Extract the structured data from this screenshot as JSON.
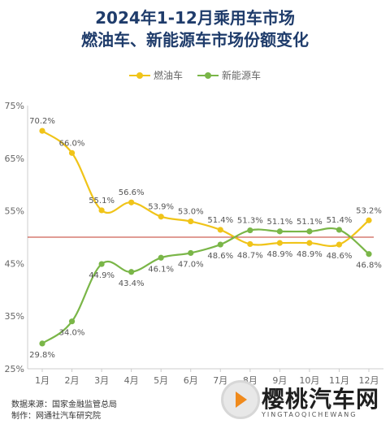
{
  "title_line1": "2024年1-12月乘用车市场",
  "title_line2": "燃油车、新能源车市场份额变化",
  "colors": {
    "fuel": "#f0c419",
    "nev": "#7ab648",
    "reference_line": "#c0392b",
    "axis_text": "#666666"
  },
  "chart_data": {
    "type": "line",
    "x": [
      "1月",
      "2月",
      "3月",
      "4月",
      "5月",
      "6月",
      "7月",
      "8月",
      "9月",
      "10月",
      "11月",
      "12月"
    ],
    "series": [
      {
        "name": "燃油车",
        "values": [
          70.2,
          66.0,
          55.1,
          56.6,
          53.9,
          53.0,
          51.4,
          48.7,
          48.9,
          48.9,
          48.6,
          53.2
        ],
        "labels": [
          "70.2%",
          "66.0%",
          "55.1%",
          "56.6%",
          "53.9%",
          "53.0%",
          "51.4%",
          "48.7%",
          "48.9%",
          "48.9%",
          "48.6%",
          "53.2%"
        ]
      },
      {
        "name": "新能源车",
        "values": [
          29.8,
          34.0,
          44.9,
          43.4,
          46.1,
          47.0,
          48.6,
          51.3,
          51.1,
          51.1,
          51.4,
          46.8
        ],
        "labels": [
          "29.8%",
          "34.0%",
          "44.9%",
          "43.4%",
          "46.1%",
          "47.0%",
          "48.6%",
          "51.3%",
          "51.1%",
          "51.1%",
          "51.4%",
          "46.8%"
        ]
      }
    ],
    "ylim": [
      25,
      75
    ],
    "yticks": [
      "25%",
      "35%",
      "45%",
      "55%",
      "65%",
      "75%"
    ],
    "reference_value": 50,
    "legend_position": "top-center",
    "grid": false
  },
  "source_line1": "数据来源：国家金融监管总局",
  "source_line2": "制作：网通社汽车研究院",
  "watermark": {
    "name": "樱桃汽车网",
    "sub": "YINGTAOQICHEWANG"
  }
}
